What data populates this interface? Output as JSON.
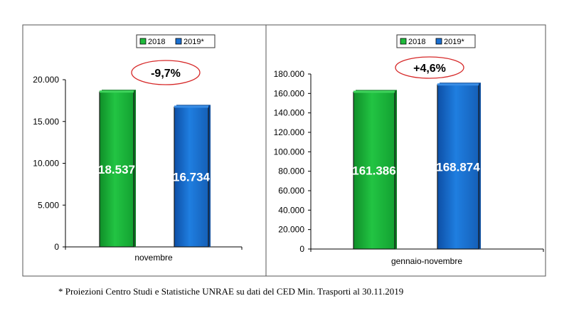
{
  "chart_data": [
    {
      "type": "bar",
      "categories": [
        "novembre"
      ],
      "series": [
        {
          "name": "2018",
          "values": [
            18537
          ]
        },
        {
          "name": "2019*",
          "values": [
            16734
          ]
        }
      ],
      "data_labels": [
        "18.537",
        "16.734"
      ],
      "change_label": "-9,7%",
      "ylim": [
        0,
        20000
      ],
      "yticks": [
        0,
        5000,
        10000,
        15000,
        20000
      ],
      "ytick_labels": [
        "0",
        "5.000",
        "10.000",
        "15.000",
        "20.000"
      ],
      "legend": "top-center",
      "grid": false
    },
    {
      "type": "bar",
      "categories": [
        "gennaio-novembre"
      ],
      "series": [
        {
          "name": "2018",
          "values": [
            161386
          ]
        },
        {
          "name": "2019*",
          "values": [
            168874
          ]
        }
      ],
      "data_labels": [
        "161.386",
        "168.874"
      ],
      "change_label": "+4,6%",
      "ylim": [
        0,
        180000
      ],
      "yticks": [
        0,
        20000,
        40000,
        60000,
        80000,
        100000,
        120000,
        140000,
        160000,
        180000
      ],
      "ytick_labels": [
        "0",
        "20.000",
        "40.000",
        "60.000",
        "80.000",
        "100.000",
        "120.000",
        "140.000",
        "160.000",
        "180.000"
      ],
      "legend": "top-center",
      "grid": false
    }
  ],
  "colors": {
    "series_2018": "#1fba3c",
    "series_2019": "#1a6fd0",
    "highlight_ellipse": "#d62828"
  },
  "footnote": "* Proiezioni Centro Studi e Statistiche UNRAE su dati del CED Min. Trasporti al 30.11.2019"
}
